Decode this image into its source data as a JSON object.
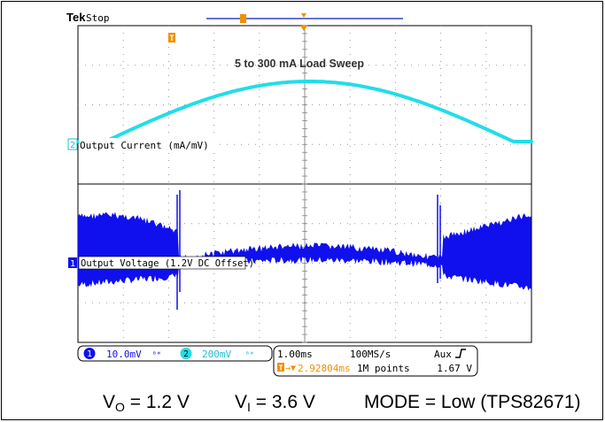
{
  "scope": {
    "brand": "Tek",
    "status": "Stop",
    "title": "5 to 300 mA Load Sweep",
    "trigger_marker_label": "T",
    "colors": {
      "ch1": "#1010ee",
      "ch2": "#22dde8",
      "grid": "#888888",
      "trigger": "#f09000",
      "background": "#ffffff"
    },
    "channels": [
      {
        "number": "2",
        "label": "Output Current (mA/mV)",
        "scale": "200mV",
        "bw_icon": "bandwidth-limit-icon"
      },
      {
        "number": "1",
        "label": "Output Voltage (1.2V DC Offset)",
        "scale": "10.0mV",
        "bw_icon": "bandwidth-limit-icon"
      }
    ],
    "timebase": "1.00ms",
    "sample_rate": "100MS/s",
    "trigger_source": "Aux",
    "trigger_slope_icon": "rising-edge-icon",
    "trigger_position": "2.92804ms",
    "record_length": "1M points",
    "trigger_level": "1.67 V"
  },
  "caption": {
    "vo_main": "V",
    "vo_sub": "O",
    "vo_value": " = 1.2 V",
    "vi_main": "V",
    "vi_sub": "I",
    "vi_value": " = 3.6 V",
    "mode": "MODE = Low (TPS82671)"
  }
}
